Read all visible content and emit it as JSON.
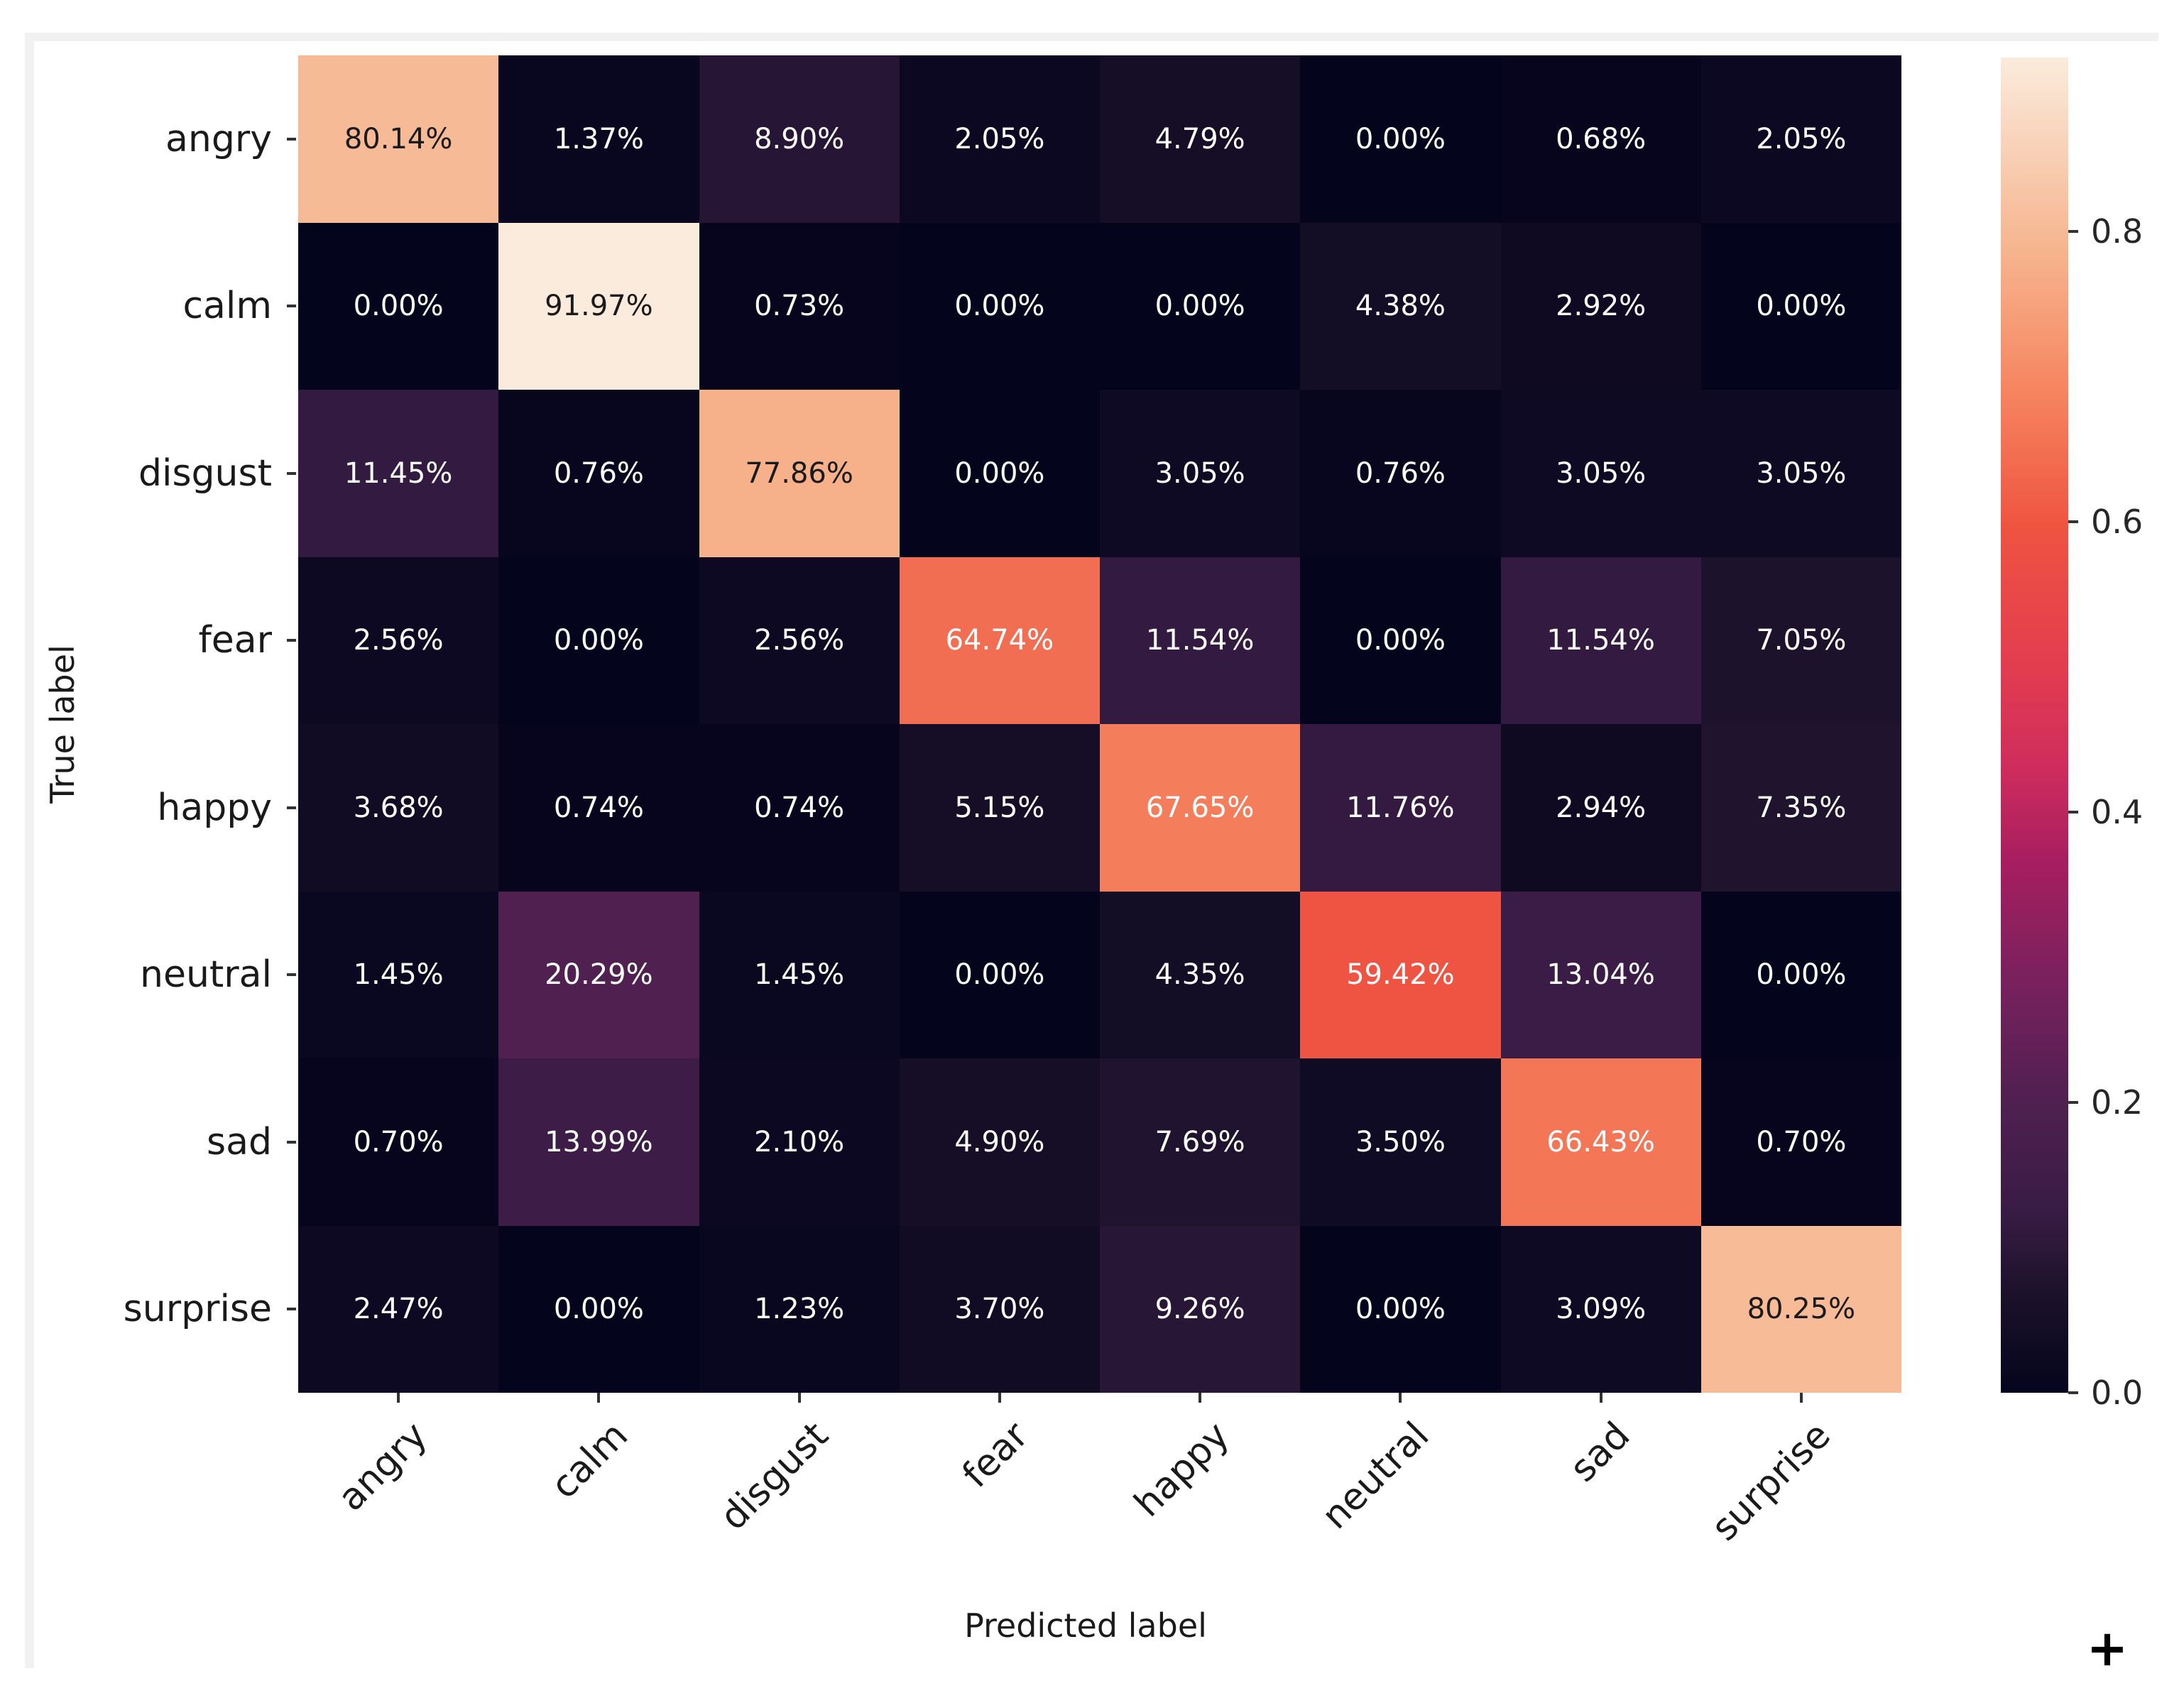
{
  "figure": {
    "xlabel": "Predicted label",
    "ylabel": "True label",
    "plus_cursor": "+"
  },
  "chart_data": {
    "type": "heatmap",
    "title": "",
    "xlabel": "Predicted label",
    "ylabel": "True label",
    "categories": [
      "angry",
      "calm",
      "disgust",
      "fear",
      "happy",
      "neutral",
      "sad",
      "surprise"
    ],
    "x_categories": [
      "angry",
      "calm",
      "disgust",
      "fear",
      "happy",
      "neutral",
      "sad",
      "surprise"
    ],
    "matrix_percent": [
      [
        80.14,
        1.37,
        8.9,
        2.05,
        4.79,
        0.0,
        0.68,
        2.05
      ],
      [
        0.0,
        91.97,
        0.73,
        0.0,
        0.0,
        4.38,
        2.92,
        0.0
      ],
      [
        11.45,
        0.76,
        77.86,
        0.0,
        3.05,
        0.76,
        3.05,
        3.05
      ],
      [
        2.56,
        0.0,
        2.56,
        64.74,
        11.54,
        0.0,
        11.54,
        7.05
      ],
      [
        3.68,
        0.74,
        0.74,
        5.15,
        67.65,
        11.76,
        2.94,
        7.35
      ],
      [
        1.45,
        20.29,
        1.45,
        0.0,
        4.35,
        59.42,
        13.04,
        0.0
      ],
      [
        0.7,
        13.99,
        2.1,
        4.9,
        7.69,
        3.5,
        66.43,
        0.7
      ],
      [
        2.47,
        0.0,
        1.23,
        3.7,
        9.26,
        0.0,
        3.09,
        80.25
      ]
    ],
    "value_suffix": "%",
    "value_decimals": 2,
    "grid": false,
    "legend_position": "right-colorbar",
    "colorbar": {
      "tick_labels": [
        "0.8",
        "0.6",
        "0.4",
        "0.2",
        "0.0"
      ],
      "tick_values": [
        0.8,
        0.6,
        0.4,
        0.2,
        0.0
      ],
      "vmin": 0.0,
      "vmax": 0.9197
    }
  },
  "colors": {
    "background": "#ffffff",
    "frame_border": "#f1f1f1",
    "tick_color": "#333333",
    "label_color": "#1a1a1a",
    "annot_light": "#ffffff",
    "annot_dark": "#1a1a1a",
    "rocket_stops": [
      [
        0.0,
        "#05041D"
      ],
      [
        0.07,
        "#1A1129"
      ],
      [
        0.14,
        "#3A1C46"
      ],
      [
        0.22,
        "#502051"
      ],
      [
        0.3,
        "#75215D"
      ],
      [
        0.4,
        "#A81E60"
      ],
      [
        0.47,
        "#D02D5C"
      ],
      [
        0.55,
        "#E33E4E"
      ],
      [
        0.65,
        "#EF5441"
      ],
      [
        0.75,
        "#F58560"
      ],
      [
        0.85,
        "#F6B28B"
      ],
      [
        1.0,
        "#FAEBDC"
      ]
    ]
  }
}
